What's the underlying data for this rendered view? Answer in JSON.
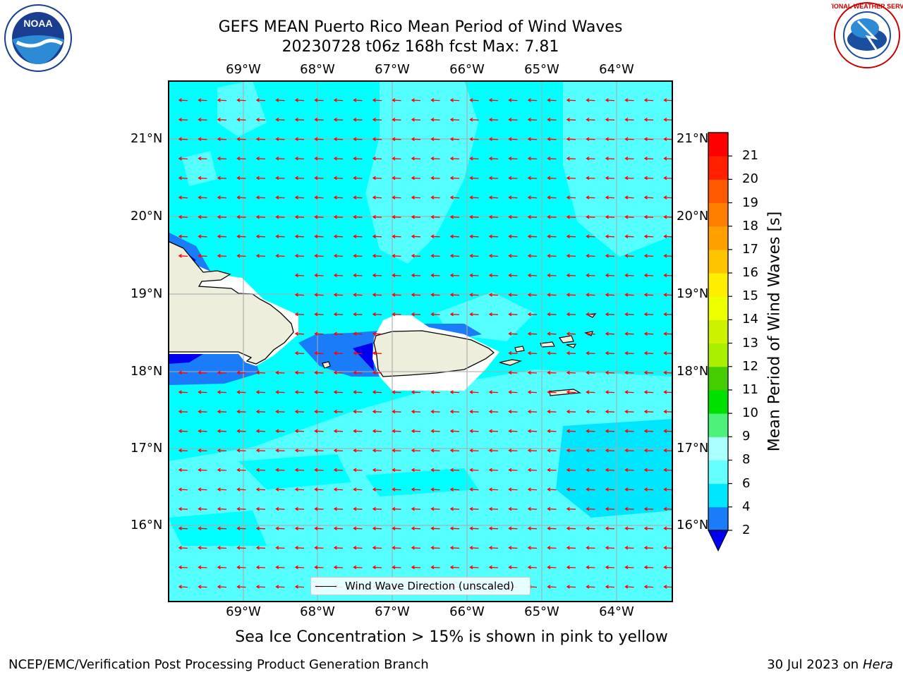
{
  "header": {
    "title_line1": "GEFS MEAN Puerto Rico Mean Period of Wind Waves",
    "title_line2": "20230728 t06z 168h fcst   Max: 7.81"
  },
  "axes": {
    "lon_labels": [
      "69°W",
      "68°W",
      "67°W",
      "66°W",
      "65°W",
      "64°W"
    ],
    "lat_labels": [
      "21°N",
      "20°N",
      "19°N",
      "18°N",
      "17°N",
      "16°N"
    ]
  },
  "legend": {
    "label": "Wind Wave Direction (unscaled)"
  },
  "colorbar": {
    "title": "Mean Period of Wind Waves [s]",
    "ticks": [
      "2",
      "4",
      "6",
      "8",
      "9",
      "10",
      "11",
      "12",
      "13",
      "14",
      "15",
      "16",
      "17",
      "18",
      "19",
      "20",
      "21"
    ],
    "colors": [
      "#1a7cf8",
      "#00e6ff",
      "#66ffff",
      "#aaffff",
      "#4cf27a",
      "#00e000",
      "#44cc00",
      "#aaee00",
      "#ccf200",
      "#eeff00",
      "#ffee00",
      "#ffc400",
      "#ff9f00",
      "#ff7e00",
      "#ff5a00",
      "#ff2000",
      "#ff0000"
    ],
    "under_color": "#0000ee"
  },
  "map": {
    "extent": {
      "lon_min": -70.0,
      "lon_max": -63.25,
      "lat_min": 15.0,
      "lat_max": 21.75
    },
    "ocean_color": "#00ffff",
    "land_color": "#eeeedd",
    "arrow_color": "#ff0000",
    "arrow_direction": "westward"
  },
  "footer": {
    "sea_ice_note": "Sea Ice Concentration > 15% is shown in pink to yellow",
    "branch": "NCEP/EMC/Verification Post Processing Product Generation Branch",
    "date_prefix": "30 Jul 2023 on",
    "machine": "Hera"
  },
  "logos": {
    "noaa_text": "NOAA",
    "nws_text": "NATIONAL WEATHER SERVICE"
  }
}
